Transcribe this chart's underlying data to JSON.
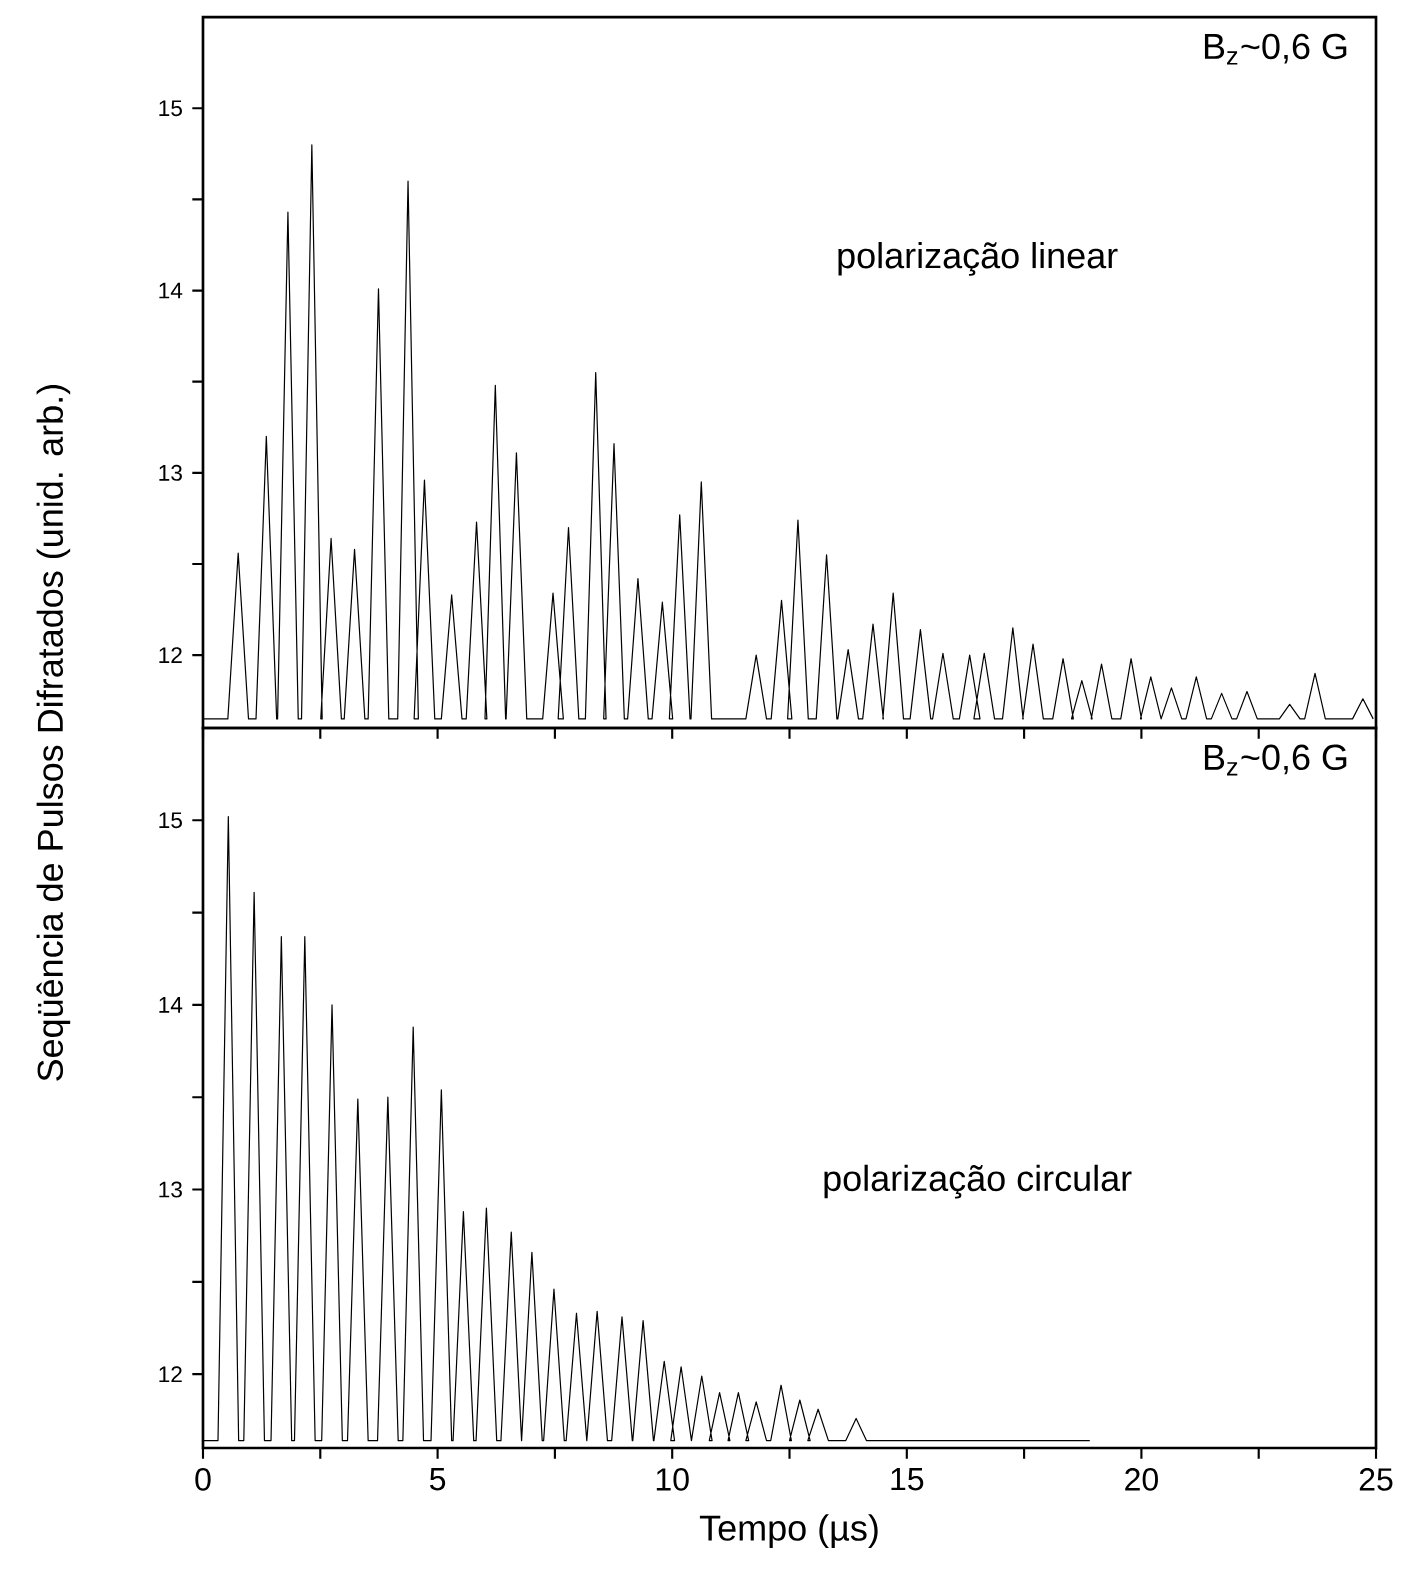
{
  "chart_data": [
    {
      "type": "line",
      "ylabel": "Seqüência de Pulsos Difratados (unid. arb.)",
      "annotations": [
        "B$_{z}$~0,6 G",
        "polarização linear"
      ],
      "xlim": [
        0,
        25
      ],
      "ylim": [
        11.6,
        15.5
      ],
      "tick_labels": "y",
      "xticks": [
        0,
        {
          "value": 2.5,
          "label": null
        },
        5,
        {
          "value": 7.5,
          "label": null
        },
        10,
        {
          "value": 12.5,
          "label": null
        },
        15,
        {
          "value": 17.5,
          "label": null
        },
        20,
        {
          "value": 22.5,
          "label": null
        },
        25
      ],
      "yticks": [
        12,
        {
          "value": 12.5,
          "label": null
        },
        13,
        {
          "value": 13.5,
          "label": null
        },
        14,
        {
          "value": 14.5,
          "label": null
        },
        15
      ],
      "marker": "none",
      "line_style": "solid",
      "series": [
        {
          "color": "#000000",
          "x": [
            0,
            0.53,
            0.75,
            0.97,
            1.13,
            1.35,
            1.57,
            1.59,
            1.81,
            2.03,
            2.1,
            2.32,
            2.54,
            2.51,
            2.73,
            2.95,
            3.01,
            3.23,
            3.45,
            3.52,
            3.74,
            3.96,
            4.15,
            4.37,
            4.59,
            4.5,
            4.72,
            4.94,
            5.08,
            5.3,
            5.52,
            5.61,
            5.83,
            6.05,
            6.01,
            6.23,
            6.45,
            6.46,
            6.68,
            6.9,
            7.24,
            7.46,
            7.68,
            7.57,
            7.79,
            8.01,
            8.15,
            8.37,
            8.59,
            8.54,
            8.76,
            8.98,
            9.05,
            9.27,
            9.49,
            9.57,
            9.79,
            10.01,
            9.94,
            10.16,
            10.38,
            10.4,
            10.62,
            10.84,
            11.57,
            11.79,
            12.01,
            12.11,
            12.33,
            12.55,
            12.46,
            12.68,
            12.9,
            13.07,
            13.29,
            13.51,
            13.53,
            13.75,
            13.97,
            14.06,
            14.28,
            14.5,
            14.49,
            14.71,
            14.93,
            15.07,
            15.29,
            15.51,
            15.55,
            15.77,
            15.99,
            16.12,
            16.34,
            16.56,
            16.43,
            16.65,
            16.87,
            17.04,
            17.26,
            17.48,
            17.47,
            17.69,
            17.91,
            18.11,
            18.33,
            18.55,
            18.51,
            18.73,
            18.95,
            18.93,
            19.15,
            19.37,
            19.56,
            19.78,
            20.0,
            19.98,
            20.2,
            20.42,
            20.42,
            20.64,
            20.86,
            20.95,
            21.17,
            21.39,
            21.49,
            21.71,
            21.93,
            22.03,
            22.25,
            22.47,
            22.94,
            23.16,
            23.38,
            23.48,
            23.7,
            23.92,
            24.5,
            24.72,
            24.94
          ],
          "values": [
            11.65,
            11.65,
            12.56,
            11.65,
            11.65,
            13.2,
            11.65,
            11.65,
            14.43,
            11.65,
            11.65,
            14.8,
            11.65,
            11.65,
            12.64,
            11.65,
            11.65,
            12.58,
            11.65,
            11.65,
            14.01,
            11.65,
            11.65,
            14.6,
            11.65,
            11.65,
            12.96,
            11.65,
            11.65,
            12.33,
            11.65,
            11.65,
            12.73,
            11.65,
            11.65,
            13.48,
            11.65,
            11.65,
            13.11,
            11.65,
            11.65,
            12.34,
            11.65,
            11.65,
            12.7,
            11.65,
            11.65,
            13.55,
            11.65,
            11.65,
            13.16,
            11.65,
            11.65,
            12.42,
            11.65,
            11.65,
            12.29,
            11.65,
            11.65,
            12.77,
            11.65,
            11.65,
            12.95,
            11.65,
            11.65,
            12.0,
            11.65,
            11.65,
            12.3,
            11.65,
            11.65,
            12.74,
            11.65,
            11.65,
            12.55,
            11.65,
            11.65,
            12.03,
            11.65,
            11.65,
            12.17,
            11.65,
            11.65,
            12.34,
            11.65,
            11.65,
            12.14,
            11.65,
            11.65,
            12.01,
            11.65,
            11.65,
            12.0,
            11.65,
            11.65,
            12.01,
            11.65,
            11.65,
            12.15,
            11.65,
            11.65,
            12.06,
            11.65,
            11.65,
            11.98,
            11.65,
            11.65,
            11.86,
            11.65,
            11.65,
            11.95,
            11.65,
            11.65,
            11.98,
            11.65,
            11.65,
            11.88,
            11.65,
            11.65,
            11.82,
            11.65,
            11.65,
            11.88,
            11.65,
            11.65,
            11.79,
            11.65,
            11.65,
            11.8,
            11.65,
            11.65,
            11.73,
            11.65,
            11.65,
            11.9,
            11.65,
            11.65,
            11.76,
            11.65
          ]
        }
      ]
    },
    {
      "type": "line",
      "xlabel": "Tempo (µs)",
      "annotations": [
        "B$_{z}$~0,6 G",
        "polarização circular"
      ],
      "xlim": [
        0,
        25
      ],
      "ylim": [
        11.6,
        15.5
      ],
      "xticks": [
        0,
        {
          "value": 2.5,
          "label": null
        },
        5,
        {
          "value": 7.5,
          "label": null
        },
        10,
        {
          "value": 12.5,
          "label": null
        },
        15,
        {
          "value": 17.5,
          "label": null
        },
        20,
        {
          "value": 22.5,
          "label": null
        },
        25
      ],
      "yticks": [
        12,
        {
          "value": 12.5,
          "label": null
        },
        13,
        {
          "value": 13.5,
          "label": null
        },
        14,
        {
          "value": 14.5,
          "label": null
        },
        15
      ],
      "marker": "none",
      "line_style": "solid",
      "series": [
        {
          "color": "#000000",
          "x": [
            0,
            0.32,
            0.54,
            0.76,
            0.87,
            1.09,
            1.31,
            1.45,
            1.67,
            1.89,
            1.95,
            2.17,
            2.39,
            2.53,
            2.75,
            2.97,
            3.08,
            3.3,
            3.52,
            3.72,
            3.94,
            4.16,
            4.26,
            4.48,
            4.7,
            4.86,
            5.08,
            5.3,
            5.33,
            5.55,
            5.77,
            5.82,
            6.04,
            6.26,
            6.35,
            6.57,
            6.79,
            6.79,
            7.01,
            7.23,
            7.26,
            7.48,
            7.7,
            7.74,
            7.96,
            8.18,
            8.18,
            8.4,
            8.62,
            8.71,
            8.93,
            9.15,
            9.16,
            9.38,
            9.6,
            9.61,
            9.83,
            10.05,
            9.97,
            10.19,
            10.41,
            10.41,
            10.63,
            10.85,
            10.79,
            11.01,
            11.23,
            11.19,
            11.41,
            11.63,
            11.57,
            11.79,
            12.01,
            12.1,
            12.32,
            12.54,
            12.5,
            12.72,
            12.94,
            12.89,
            13.11,
            13.33,
            13.7,
            13.92,
            14.14,
            18.9
          ],
          "values": [
            11.64,
            11.64,
            15.02,
            11.64,
            11.64,
            14.61,
            11.64,
            11.64,
            14.37,
            11.64,
            11.64,
            14.37,
            11.64,
            11.64,
            14.0,
            11.64,
            11.64,
            13.49,
            11.64,
            11.64,
            13.5,
            11.64,
            11.64,
            13.88,
            11.64,
            11.64,
            13.54,
            11.64,
            11.64,
            12.88,
            11.64,
            11.64,
            12.9,
            11.64,
            11.64,
            12.77,
            11.64,
            11.64,
            12.66,
            11.64,
            11.64,
            12.46,
            11.64,
            11.64,
            12.33,
            11.64,
            11.64,
            12.34,
            11.64,
            11.64,
            12.31,
            11.64,
            11.64,
            12.29,
            11.64,
            11.64,
            12.07,
            11.64,
            11.64,
            12.04,
            11.64,
            11.64,
            11.99,
            11.64,
            11.64,
            11.9,
            11.64,
            11.64,
            11.9,
            11.64,
            11.64,
            11.85,
            11.64,
            11.64,
            11.94,
            11.64,
            11.64,
            11.86,
            11.64,
            11.64,
            11.81,
            11.64,
            11.64,
            11.76,
            11.64,
            11.64
          ]
        }
      ]
    }
  ]
}
